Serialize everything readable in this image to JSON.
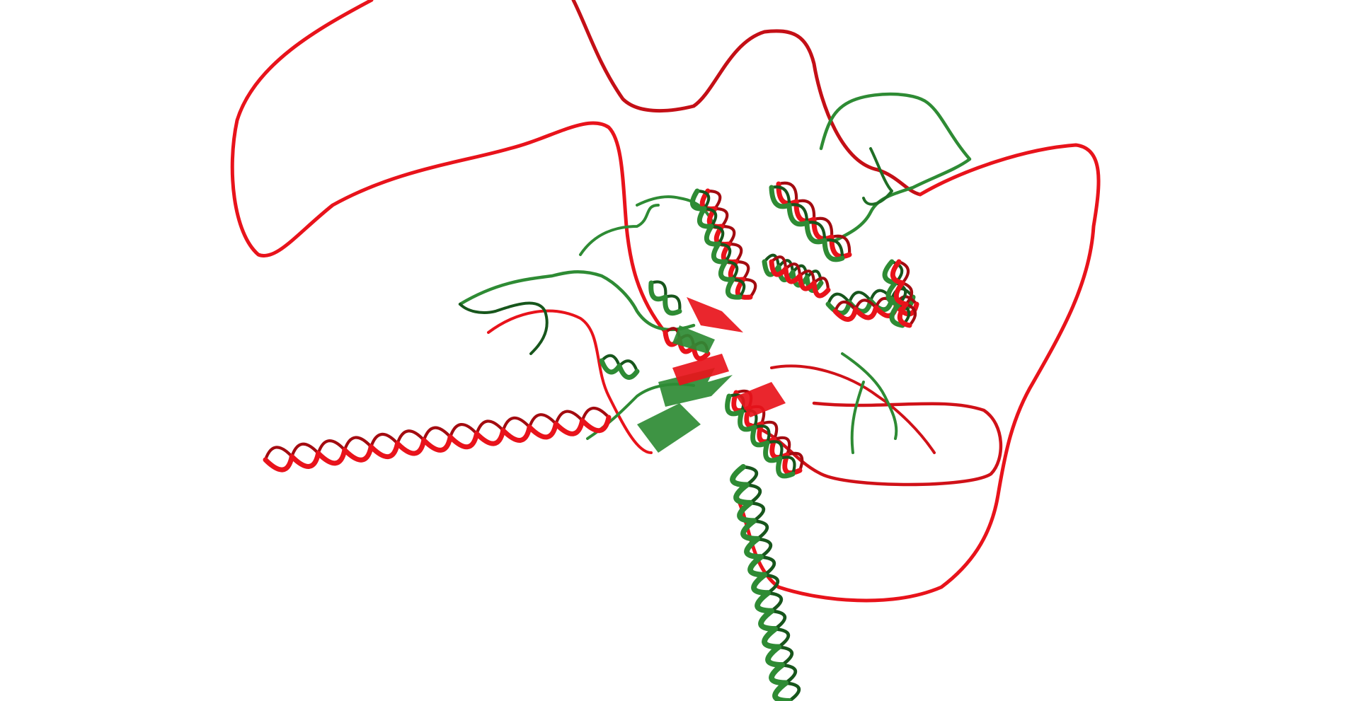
{
  "scene": {
    "background": "#ffffff",
    "structures": [
      {
        "name": "red-structure",
        "color": "#e8131b",
        "shade": "#a30b10"
      },
      {
        "name": "green-structure",
        "color": "#2e8b34",
        "shade": "#17561c"
      }
    ]
  }
}
